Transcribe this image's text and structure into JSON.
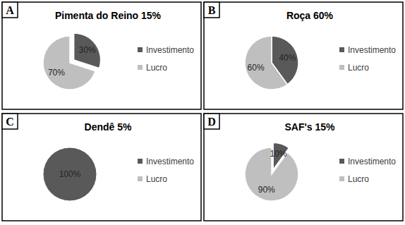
{
  "chart_data": [
    {
      "type": "pie",
      "annotation": "A",
      "title": "Pimenta do Reino 15%",
      "categories": [
        "Investimento",
        "Lucro"
      ],
      "values": [
        30,
        70
      ],
      "value_labels": [
        "30%",
        "70%"
      ],
      "data_labels": true,
      "colors": [
        "#595959",
        "#bfbfbf"
      ],
      "legend": "right"
    },
    {
      "type": "pie",
      "annotation": "B",
      "title": "Roça 60%",
      "categories": [
        "Investimento",
        "Lucro"
      ],
      "values": [
        40,
        60
      ],
      "value_labels": [
        "40%",
        "60%"
      ],
      "data_labels": true,
      "colors": [
        "#595959",
        "#bfbfbf"
      ],
      "legend": "right"
    },
    {
      "type": "pie",
      "annotation": "C",
      "title": "Dendê 5%",
      "categories": [
        "Investimento",
        "Lucro"
      ],
      "values": [
        100,
        0
      ],
      "value_labels": [
        "100%",
        null
      ],
      "data_labels": true,
      "colors": [
        "#595959",
        "#bfbfbf"
      ],
      "legend": "right"
    },
    {
      "type": "pie",
      "annotation": "D",
      "title": "SAF's 15%",
      "categories": [
        "Investimento",
        "Lucro"
      ],
      "values": [
        10,
        90
      ],
      "value_labels": [
        "10%",
        "90%"
      ],
      "data_labels": true,
      "colors": [
        "#595959",
        "#bfbfbf"
      ],
      "legend": "right"
    }
  ]
}
